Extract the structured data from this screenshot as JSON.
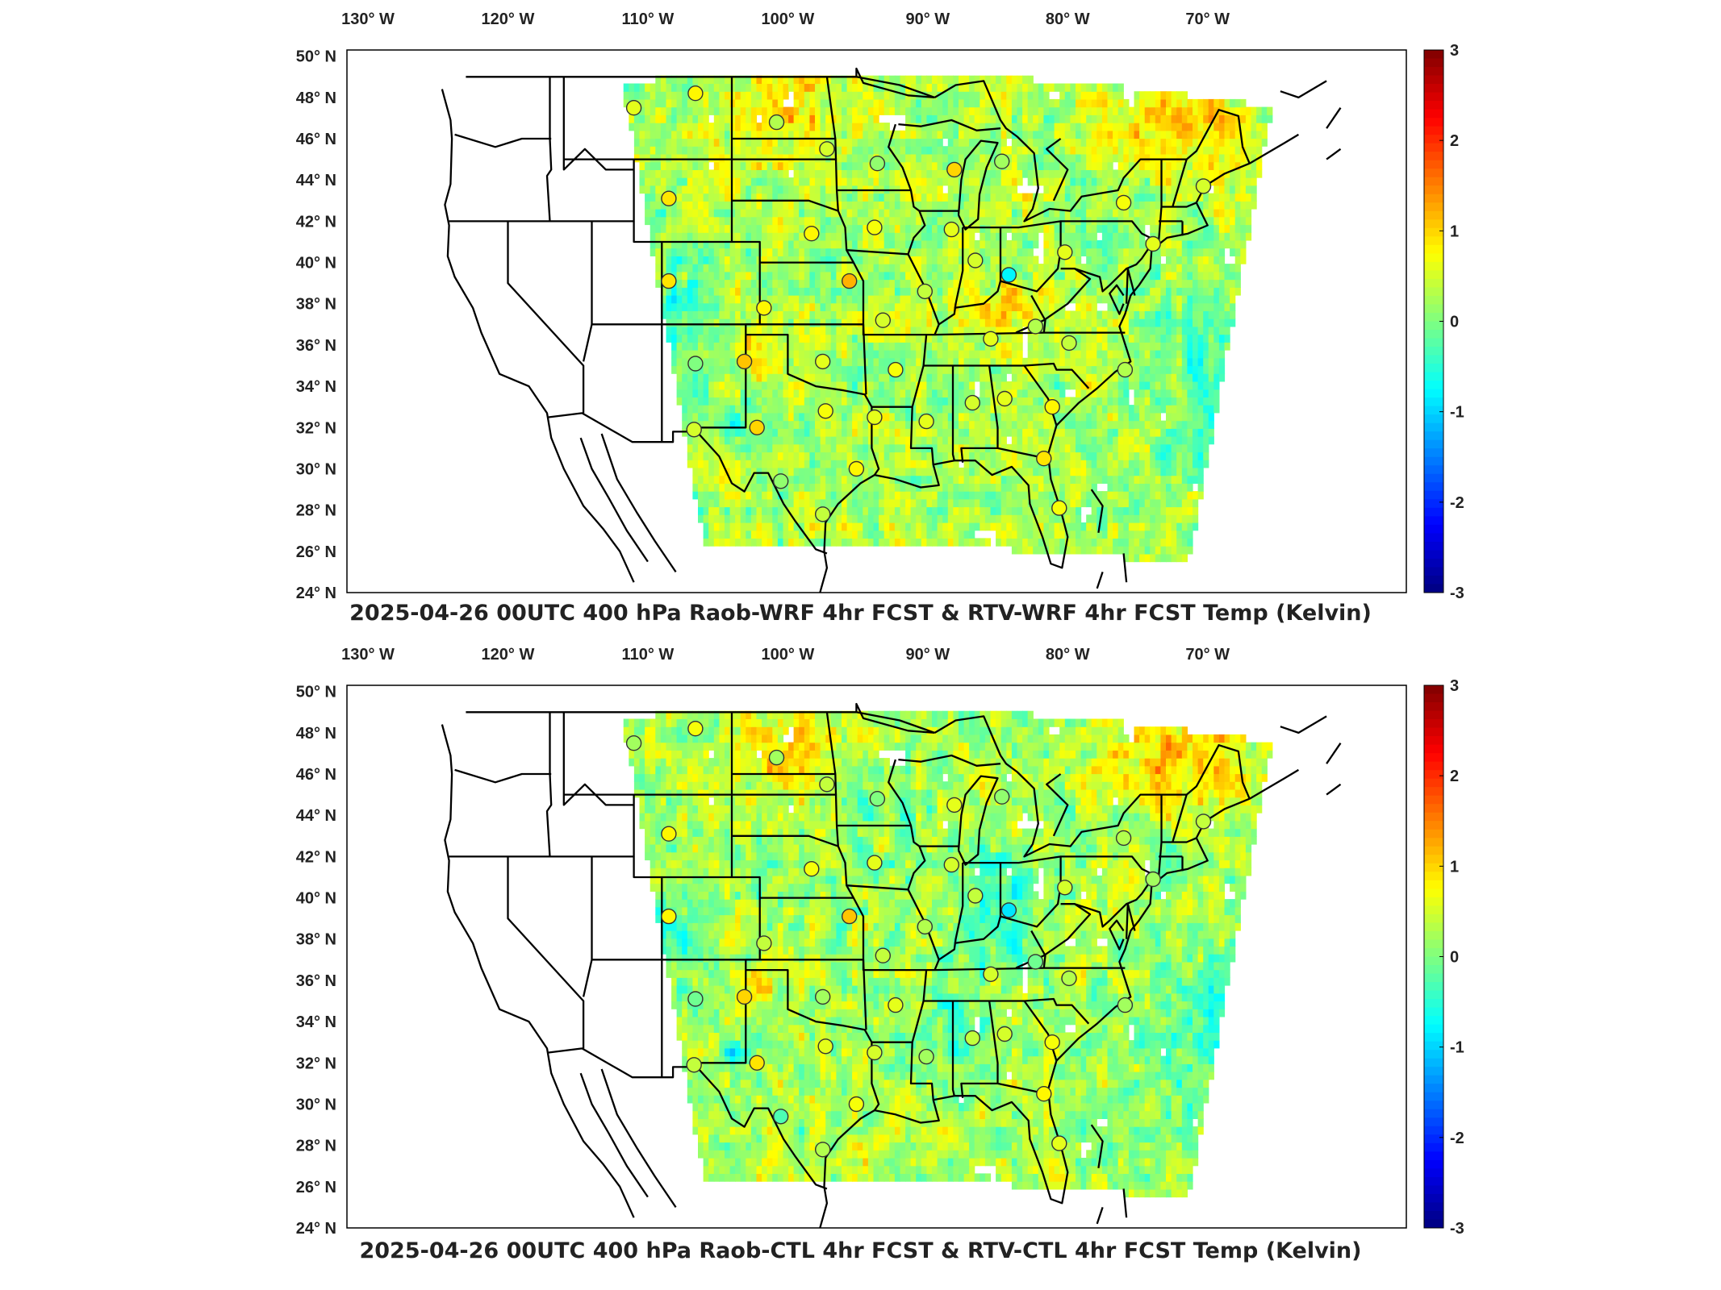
{
  "maps": [
    {
      "title": "2025-04-26 00UTC 400 hPa Raob-WRF 4hr FCST & RTV-WRF 4hr FCST Temp (Kelvin)",
      "variant": "wrf"
    },
    {
      "title": "2025-04-26 00UTC 400 hPa Raob-CTL 4hr FCST & RTV-CTL 4hr FCST Temp (Kelvin)",
      "variant": "ctl"
    }
  ],
  "lon_labels": [
    "130° W",
    "120° W",
    "110° W",
    "100° W",
    "90° W",
    "80° W",
    "70° W"
  ],
  "lat_labels": [
    "50° N",
    "48° N",
    "46° N",
    "44° N",
    "42° N",
    "40° N",
    "38° N",
    "36° N",
    "34° N",
    "32° N",
    "30° N",
    "28° N",
    "26° N",
    "24° N"
  ],
  "colorbar": {
    "labels": [
      "3",
      "2",
      "1",
      "0",
      "-1",
      "-2",
      "-3"
    ],
    "min": -3,
    "max": 3,
    "colormap": "jet"
  },
  "colors": {
    "jet_low": "#00008f",
    "jet_mid": "#7fff7f",
    "jet_high": "#800000",
    "border": "#000000"
  },
  "stations": [
    {
      "lon": -111,
      "lat": 47.5,
      "v": 0.6
    },
    {
      "lon": -106.6,
      "lat": 48.2,
      "v": 0.8
    },
    {
      "lon": -100.8,
      "lat": 46.8,
      "v": 0.3
    },
    {
      "lon": -97.2,
      "lat": 45.5,
      "v": 0.5
    },
    {
      "lon": -93.6,
      "lat": 44.8,
      "v": 0.1
    },
    {
      "lon": -88.1,
      "lat": 44.5,
      "v": 1.0
    },
    {
      "lon": -84.7,
      "lat": 44.9,
      "v": 0.2
    },
    {
      "lon": -108.5,
      "lat": 43.1,
      "v": 0.9
    },
    {
      "lon": -93.8,
      "lat": 41.7,
      "v": 0.7
    },
    {
      "lon": -98.3,
      "lat": 41.4,
      "v": 0.8
    },
    {
      "lon": -76.0,
      "lat": 42.9,
      "v": 0.7
    },
    {
      "lon": -80.2,
      "lat": 40.5,
      "v": 0.6
    },
    {
      "lon": -86.6,
      "lat": 40.1,
      "v": 0.5
    },
    {
      "lon": -84.2,
      "lat": 39.4,
      "v": -0.8
    },
    {
      "lon": -108.5,
      "lat": 39.1,
      "v": 0.9
    },
    {
      "lon": -101.7,
      "lat": 37.8,
      "v": 0.8
    },
    {
      "lon": -95.6,
      "lat": 39.1,
      "v": 1.2
    },
    {
      "lon": -90.2,
      "lat": 38.6,
      "v": 0.4
    },
    {
      "lon": -93.2,
      "lat": 37.2,
      "v": 0.5
    },
    {
      "lon": -85.5,
      "lat": 36.3,
      "v": 0.6
    },
    {
      "lon": -82.3,
      "lat": 36.9,
      "v": 0.3
    },
    {
      "lon": -79.9,
      "lat": 36.1,
      "v": 0.4
    },
    {
      "lon": -75.9,
      "lat": 34.8,
      "v": 0.3
    },
    {
      "lon": -106.6,
      "lat": 35.1,
      "v": 0.0
    },
    {
      "lon": -103.1,
      "lat": 35.2,
      "v": 1.1
    },
    {
      "lon": -97.5,
      "lat": 35.2,
      "v": 0.6
    },
    {
      "lon": -92.3,
      "lat": 34.8,
      "v": 0.7
    },
    {
      "lon": -86.8,
      "lat": 33.2,
      "v": 0.5
    },
    {
      "lon": -84.5,
      "lat": 33.4,
      "v": 0.6
    },
    {
      "lon": -81.1,
      "lat": 33.0,
      "v": 0.8
    },
    {
      "lon": -90.1,
      "lat": 32.3,
      "v": 0.6
    },
    {
      "lon": -97.3,
      "lat": 32.8,
      "v": 0.7
    },
    {
      "lon": -93.8,
      "lat": 32.5,
      "v": 0.6
    },
    {
      "lon": -102.2,
      "lat": 32.0,
      "v": 1.0
    },
    {
      "lon": -106.7,
      "lat": 31.9,
      "v": 0.5
    },
    {
      "lon": -100.5,
      "lat": 29.4,
      "v": 0.1
    },
    {
      "lon": -97.5,
      "lat": 27.8,
      "v": 0.4
    },
    {
      "lon": -95.1,
      "lat": 30.0,
      "v": 0.8
    },
    {
      "lon": -81.7,
      "lat": 30.5,
      "v": 0.9
    },
    {
      "lon": -80.6,
      "lat": 28.1,
      "v": 0.7
    },
    {
      "lon": -73.9,
      "lat": 40.9,
      "v": 0.6
    },
    {
      "lon": -70.3,
      "lat": 43.7,
      "v": 0.5
    },
    {
      "lon": -88.3,
      "lat": 41.6,
      "v": 0.6
    }
  ]
}
